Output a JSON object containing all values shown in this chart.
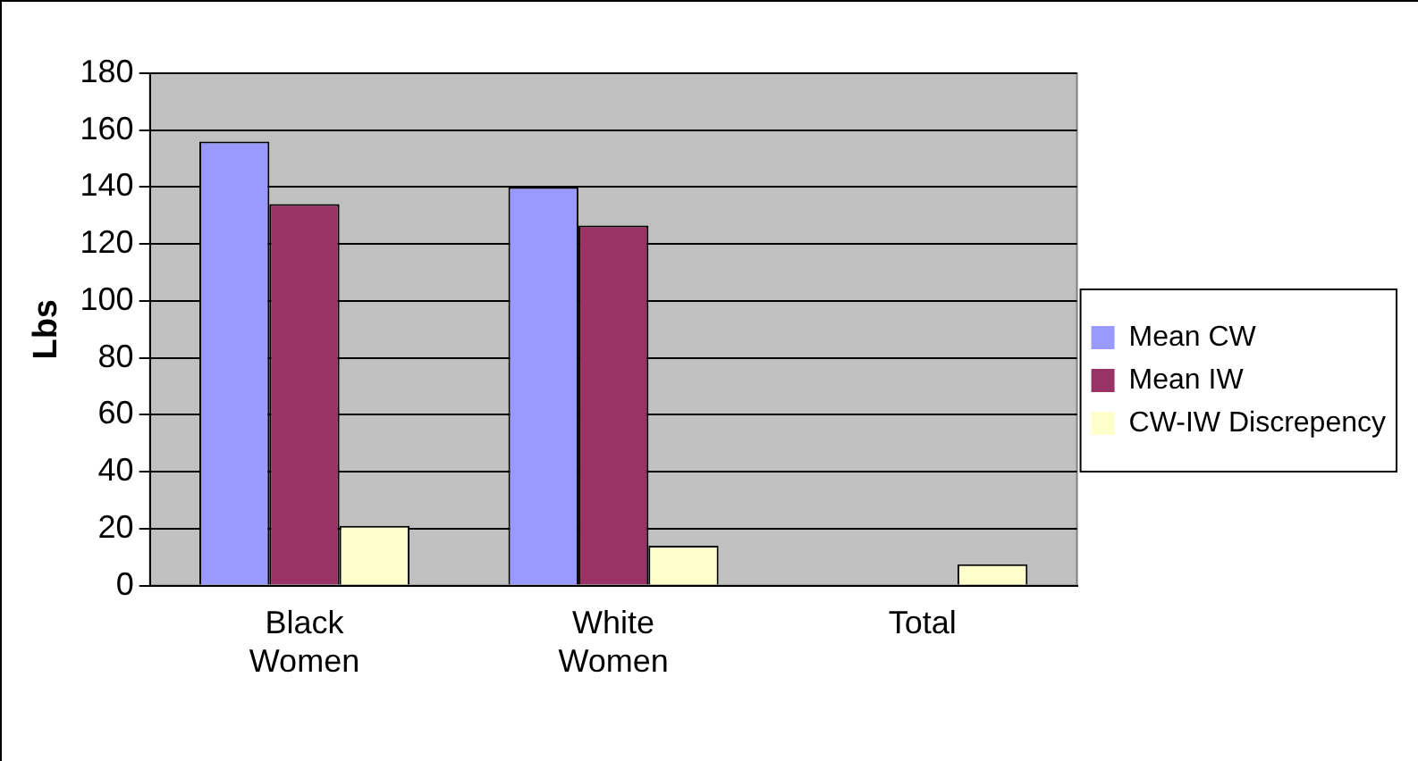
{
  "chart_data": {
    "type": "bar",
    "ylabel": "Lbs",
    "categories": [
      "Black Women",
      "White Women",
      "Total"
    ],
    "series": [
      {
        "name": "Mean CW",
        "color": "#9999ff",
        "values": [
          156,
          140,
          null
        ]
      },
      {
        "name": "Mean IW",
        "color": "#993366",
        "values": [
          134,
          126.5,
          null
        ]
      },
      {
        "name": "CW-IW Discrepency",
        "color": "#ffffcc",
        "values": [
          21,
          14,
          7.5
        ]
      }
    ],
    "ylim": [
      0,
      180
    ],
    "yticks": [
      0,
      20,
      40,
      60,
      80,
      100,
      120,
      140,
      160,
      180
    ],
    "grid": "y",
    "legend": "right"
  }
}
